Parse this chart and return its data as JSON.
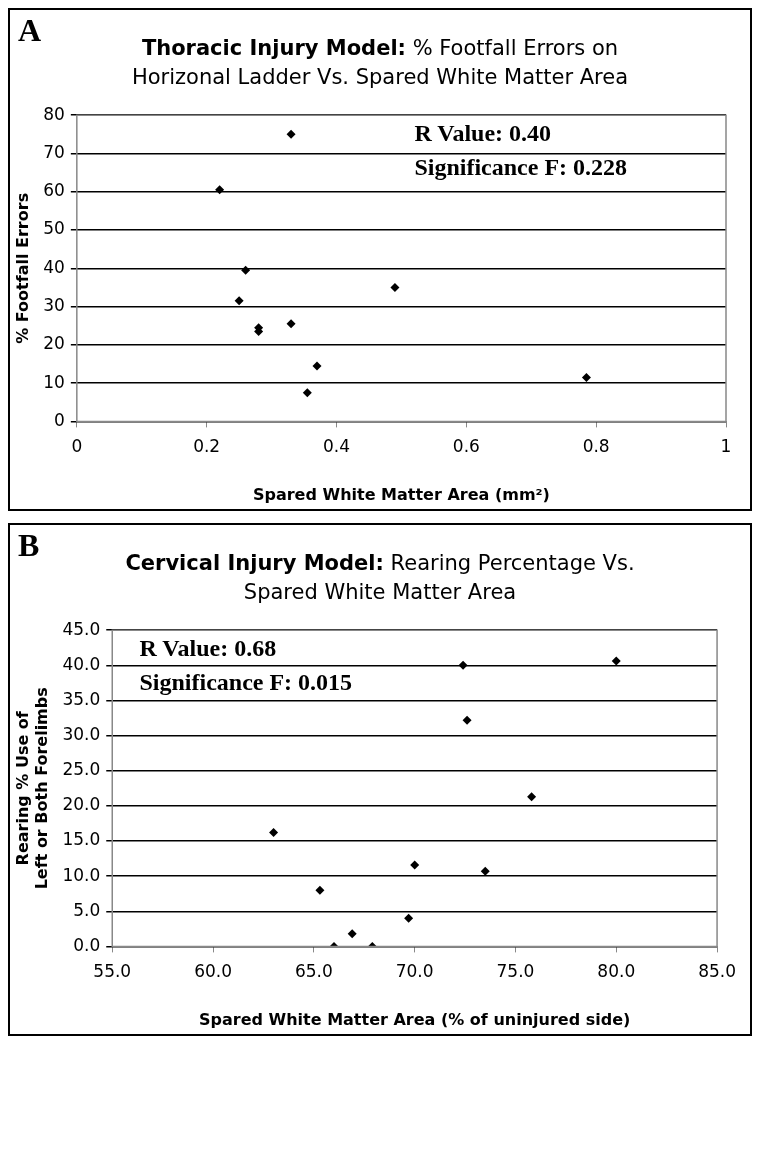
{
  "chart_data": [
    {
      "type": "scatter",
      "title": "Thoracic Injury Model: % Footfall Errors on Horizonal Ladder Vs. Spared White Matter Area",
      "xlabel": "Spared White Matter Area (mm²)",
      "ylabel": "% Footfall Errors",
      "annotations": [
        "A",
        "R Value: 0.40",
        "Significance F: 0.228"
      ],
      "series": [
        {
          "color": "#000000",
          "x": [
            0.22,
            0.33,
            0.26,
            0.25,
            0.28,
            0.28,
            0.33,
            0.49,
            0.37,
            0.355,
            0.785
          ],
          "values": [
            60.5,
            75,
            39.5,
            31.5,
            24.5,
            23.5,
            25.5,
            35,
            14.5,
            7.5,
            11.5
          ]
        }
      ],
      "xlim": [
        0,
        1
      ],
      "xticks": [
        0,
        0.2,
        0.4,
        0.6,
        0.8,
        1
      ],
      "ylim": [
        0,
        80
      ],
      "yticks": [
        0,
        10,
        20,
        30,
        40,
        50,
        60,
        70,
        80
      ],
      "grid": "y",
      "marker": "diamond",
      "legend": false
    },
    {
      "type": "scatter",
      "title": "Cervical Injury Model: Rearing Percentage Vs. Spared White Matter Area",
      "xlabel": "Spared White Matter Area (% of uninjured side)",
      "ylabel": "Rearing % Use of Left or Both Forelimbs",
      "annotations": [
        "B",
        "R Value: 0.68",
        "Significance F: 0.015"
      ],
      "series": [
        {
          "color": "#000000",
          "x": [
            63.0,
            65.3,
            66.0,
            66.9,
            67.9,
            69.7,
            70.0,
            72.4,
            72.6,
            73.5,
            75.8,
            80.0
          ],
          "values": [
            16.2,
            8.0,
            0,
            1.8,
            0,
            4.0,
            11.6,
            40.0,
            32.2,
            10.7,
            21.3,
            40.6
          ]
        }
      ],
      "xlim": [
        55,
        85
      ],
      "xticks": [
        {
          "value": 55,
          "label": "55.0"
        },
        {
          "value": 60,
          "label": "60.0"
        },
        {
          "value": 65,
          "label": "65.0"
        },
        {
          "value": 70,
          "label": "70.0"
        },
        {
          "value": 75,
          "label": "75.0"
        },
        {
          "value": 80,
          "label": "80.0"
        },
        {
          "value": 85,
          "label": "85.0"
        }
      ],
      "ylim": [
        0,
        45
      ],
      "yticks": [
        {
          "value": 0,
          "label": "0.0"
        },
        {
          "value": 5,
          "label": "5.0"
        },
        {
          "value": 10,
          "label": "10.0"
        },
        {
          "value": 15,
          "label": "15.0"
        },
        {
          "value": 20,
          "label": "20.0"
        },
        {
          "value": 25,
          "label": "25.0"
        },
        {
          "value": 30,
          "label": "30.0"
        },
        {
          "value": 35,
          "label": "35.0"
        },
        {
          "value": 40,
          "label": "40.0"
        },
        {
          "value": 45,
          "label": "45.0"
        }
      ],
      "grid": "y",
      "marker": "diamond",
      "legend": false
    }
  ]
}
